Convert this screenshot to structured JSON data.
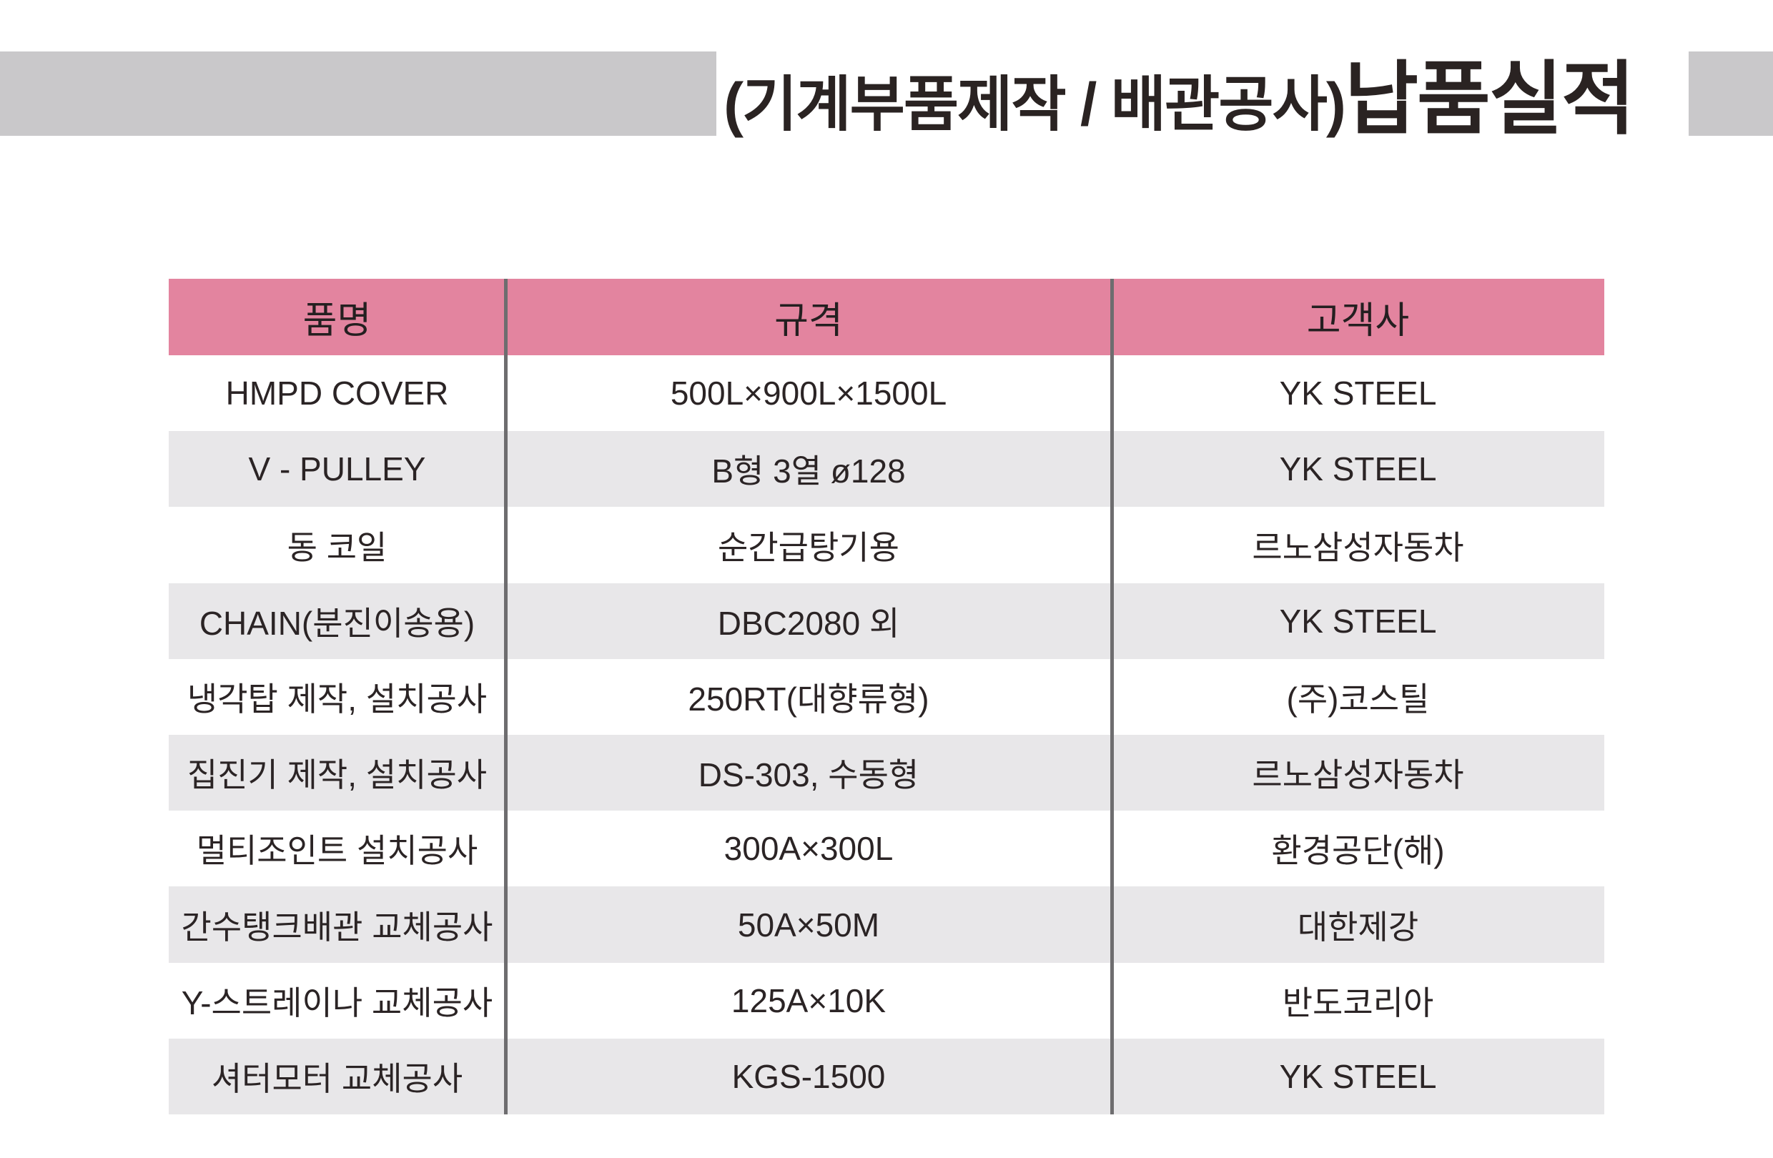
{
  "page": {
    "background_color": "#ffffff",
    "accent_pink": "#e3849f",
    "bar_gray": "#c9c8ca",
    "row_alt_gray": "#e8e7e9",
    "divider_gray": "#6e6d6f",
    "text_color": "#2b2425"
  },
  "header": {
    "title_prefix": "(기계부품제작 / 배관공사)",
    "title_main": "납품실적"
  },
  "table": {
    "columns": [
      "품명",
      "규격",
      "고객사"
    ],
    "rows": [
      [
        "HMPD COVER",
        "500L×900L×1500L",
        "YK STEEL"
      ],
      [
        "V - PULLEY",
        "B형 3열 ø128",
        "YK STEEL"
      ],
      [
        "동 코일",
        "순간급탕기용",
        "르노삼성자동차"
      ],
      [
        "CHAIN(분진이송용)",
        "DBC2080 외",
        "YK STEEL"
      ],
      [
        "냉각탑 제작, 설치공사",
        "250RT(대향류형)",
        "(주)코스틸"
      ],
      [
        "집진기 제작, 설치공사",
        "DS-303, 수동형",
        "르노삼성자동차"
      ],
      [
        "멀티조인트 설치공사",
        "300A×300L",
        "환경공단(해)"
      ],
      [
        "간수탱크배관 교체공사",
        "50A×50M",
        "대한제강"
      ],
      [
        "Y-스트레이나 교체공사",
        "125A×10K",
        "반도코리아"
      ],
      [
        "셔터모터 교체공사",
        "KGS-1500",
        "YK STEEL"
      ]
    ]
  }
}
